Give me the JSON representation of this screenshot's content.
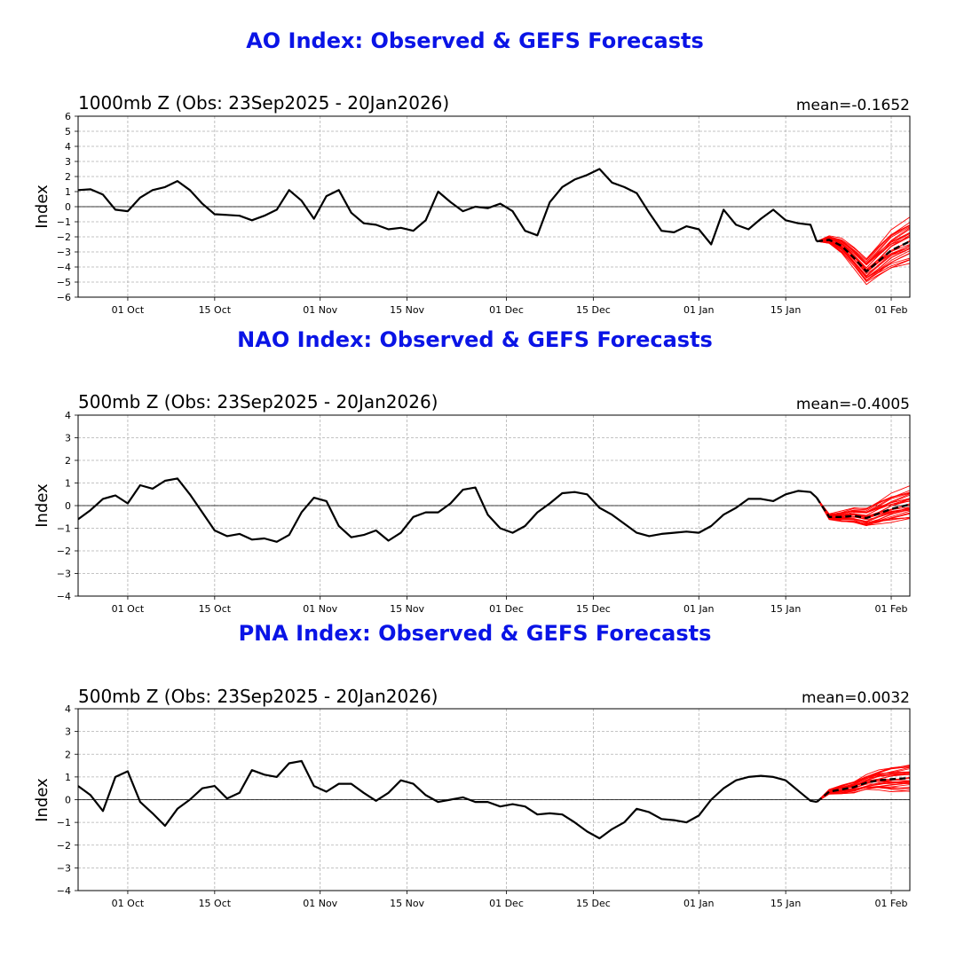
{
  "colors": {
    "title": "#0a14e6",
    "observed": "#000000",
    "members": "#ff0000",
    "ensemble_mean": "#000000",
    "grid": "#b0b0b0",
    "zero_line": "#000000"
  },
  "x_ticks": [
    "01 Oct",
    "15 Oct",
    "01 Nov",
    "15 Nov",
    "01 Dec",
    "15 Dec",
    "01 Jan",
    "15 Jan",
    "01 Feb"
  ],
  "chart_data": [
    {
      "type": "line",
      "title": "AO Index: Observed & GEFS Forecasts",
      "subtitle": "1000mb Z (Obs: 23Sep2025 - 20Jan2026)",
      "mean_label": "mean=-0.1652",
      "ylabel": "Index",
      "ylim": [
        -6,
        6
      ],
      "yticks": [
        -6,
        -5,
        -4,
        -3,
        -2,
        -1,
        0,
        1,
        2,
        3,
        4,
        5,
        6
      ],
      "x_range": [
        "2025-09-23",
        "2026-02-04"
      ],
      "grid": true,
      "observed": {
        "dates": [
          "2025-09-23",
          "2025-09-25",
          "2025-09-27",
          "2025-09-29",
          "2025-10-01",
          "2025-10-03",
          "2025-10-05",
          "2025-10-07",
          "2025-10-09",
          "2025-10-11",
          "2025-10-13",
          "2025-10-15",
          "2025-10-17",
          "2025-10-19",
          "2025-10-21",
          "2025-10-23",
          "2025-10-25",
          "2025-10-27",
          "2025-10-29",
          "2025-10-31",
          "2025-11-02",
          "2025-11-04",
          "2025-11-06",
          "2025-11-08",
          "2025-11-10",
          "2025-11-12",
          "2025-11-14",
          "2025-11-16",
          "2025-11-18",
          "2025-11-20",
          "2025-11-22",
          "2025-11-24",
          "2025-11-26",
          "2025-11-28",
          "2025-11-30",
          "2025-12-02",
          "2025-12-04",
          "2025-12-06",
          "2025-12-08",
          "2025-12-10",
          "2025-12-12",
          "2025-12-14",
          "2025-12-16",
          "2025-12-18",
          "2025-12-20",
          "2025-12-22",
          "2025-12-24",
          "2025-12-26",
          "2025-12-28",
          "2025-12-30",
          "2026-01-01",
          "2026-01-03",
          "2026-01-05",
          "2026-01-07",
          "2026-01-09",
          "2026-01-11",
          "2026-01-13",
          "2026-01-15",
          "2026-01-17",
          "2026-01-19",
          "2026-01-20"
        ],
        "values": [
          1.1,
          1.15,
          0.8,
          -0.2,
          -0.3,
          0.6,
          1.1,
          1.3,
          1.7,
          1.1,
          0.2,
          -0.5,
          -0.55,
          -0.6,
          -0.9,
          -0.6,
          -0.2,
          1.1,
          0.4,
          -0.8,
          0.7,
          1.1,
          -0.4,
          -1.1,
          -1.2,
          -1.5,
          -1.4,
          -1.6,
          -0.9,
          1.0,
          0.3,
          -0.3,
          0,
          -0.1,
          0.2,
          -0.3,
          -1.6,
          -1.9,
          0.3,
          1.3,
          1.8,
          2.1,
          2.5,
          1.6,
          1.3,
          0.9,
          -0.4,
          -1.6,
          -1.7,
          -1.3,
          -1.5,
          -2.5,
          -0.2,
          -1.2,
          -1.5,
          -0.8,
          -0.2,
          -0.9,
          -1.1,
          -1.2,
          -2.3
        ]
      },
      "forecast": {
        "dates": [
          "2026-01-20",
          "2026-01-22",
          "2026-01-24",
          "2026-01-26",
          "2026-01-28",
          "2026-01-30",
          "2026-02-01",
          "2026-02-04"
        ],
        "ensemble_mean": [
          -2.3,
          -2.2,
          -2.6,
          -3.4,
          -4.3,
          -3.6,
          -2.9,
          -2.3
        ],
        "member_spread_offsets": [
          -1.0,
          -0.8,
          -0.6,
          -0.4,
          -0.2,
          0.0,
          0.2,
          0.4,
          0.6,
          0.8,
          1.0,
          1.2,
          -1.2,
          0.3,
          -0.5,
          0.7,
          -0.3,
          1.5,
          -1.4,
          0.1,
          -0.7,
          0.9,
          -0.1,
          1.3,
          -0.9,
          0.5,
          -0.2,
          0.8,
          -0.6,
          1.1,
          -1.1
        ]
      }
    },
    {
      "type": "line",
      "title": "NAO Index: Observed & GEFS Forecasts",
      "subtitle": "500mb Z (Obs: 23Sep2025 - 20Jan2026)",
      "mean_label": "mean=-0.4005",
      "ylabel": "Index",
      "ylim": [
        -4,
        4
      ],
      "yticks": [
        -4,
        -3,
        -2,
        -1,
        0,
        1,
        2,
        3,
        4
      ],
      "x_range": [
        "2025-09-23",
        "2026-02-04"
      ],
      "grid": true,
      "observed": {
        "dates": [
          "2025-09-23",
          "2025-09-25",
          "2025-09-27",
          "2025-09-29",
          "2025-10-01",
          "2025-10-03",
          "2025-10-05",
          "2025-10-07",
          "2025-10-09",
          "2025-10-11",
          "2025-10-13",
          "2025-10-15",
          "2025-10-17",
          "2025-10-19",
          "2025-10-21",
          "2025-10-23",
          "2025-10-25",
          "2025-10-27",
          "2025-10-29",
          "2025-10-31",
          "2025-11-02",
          "2025-11-04",
          "2025-11-06",
          "2025-11-08",
          "2025-11-10",
          "2025-11-12",
          "2025-11-14",
          "2025-11-16",
          "2025-11-18",
          "2025-11-20",
          "2025-11-22",
          "2025-11-24",
          "2025-11-26",
          "2025-11-28",
          "2025-11-30",
          "2025-12-02",
          "2025-12-04",
          "2025-12-06",
          "2025-12-08",
          "2025-12-10",
          "2025-12-12",
          "2025-12-14",
          "2025-12-16",
          "2025-12-18",
          "2025-12-20",
          "2025-12-22",
          "2025-12-24",
          "2025-12-26",
          "2025-12-28",
          "2025-12-30",
          "2026-01-01",
          "2026-01-03",
          "2026-01-05",
          "2026-01-07",
          "2026-01-09",
          "2026-01-11",
          "2026-01-13",
          "2026-01-15",
          "2026-01-17",
          "2026-01-19",
          "2026-01-20"
        ],
        "values": [
          -0.6,
          -0.2,
          0.3,
          0.45,
          0.1,
          0.9,
          0.75,
          1.1,
          1.2,
          0.5,
          -0.3,
          -1.1,
          -1.35,
          -1.25,
          -1.5,
          -1.45,
          -1.6,
          -1.3,
          -0.3,
          0.35,
          0.2,
          -0.9,
          -1.4,
          -1.3,
          -1.1,
          -1.55,
          -1.2,
          -0.5,
          -0.3,
          -0.3,
          0.1,
          0.7,
          0.8,
          -0.4,
          -1.0,
          -1.2,
          -0.9,
          -0.3,
          0.1,
          0.55,
          0.6,
          0.5,
          -0.1,
          -0.4,
          -0.8,
          -1.2,
          -1.35,
          -1.25,
          -1.2,
          -1.15,
          -1.2,
          -0.9,
          -0.4,
          -0.1,
          0.3,
          0.3,
          0.2,
          0.5,
          0.65,
          0.6,
          0.35
        ]
      },
      "forecast": {
        "dates": [
          "2026-01-20",
          "2026-01-22",
          "2026-01-24",
          "2026-01-26",
          "2026-01-28",
          "2026-01-30",
          "2026-02-01",
          "2026-02-04"
        ],
        "ensemble_mean": [
          0.35,
          -0.5,
          -0.5,
          -0.45,
          -0.55,
          -0.35,
          -0.15,
          0.05
        ],
        "member_spread_offsets": [
          -0.5,
          -0.4,
          -0.3,
          -0.2,
          -0.1,
          0.0,
          0.1,
          0.2,
          0.3,
          0.4,
          0.5,
          0.6,
          -0.6,
          0.15,
          -0.25,
          0.35,
          -0.15,
          0.75,
          -0.55,
          0.05,
          -0.35,
          0.45,
          -0.05,
          0.65,
          -0.45,
          0.25,
          -0.1,
          0.4,
          -0.3,
          0.55,
          -0.5
        ]
      }
    },
    {
      "type": "line",
      "title": "PNA Index: Observed & GEFS Forecasts",
      "subtitle": "500mb Z (Obs: 23Sep2025 - 20Jan2026)",
      "mean_label": "mean=0.0032",
      "ylabel": "Index",
      "ylim": [
        -4,
        4
      ],
      "yticks": [
        -4,
        -3,
        -2,
        -1,
        0,
        1,
        2,
        3,
        4
      ],
      "x_range": [
        "2025-09-23",
        "2026-02-04"
      ],
      "grid": true,
      "observed": {
        "dates": [
          "2025-09-23",
          "2025-09-25",
          "2025-09-27",
          "2025-09-29",
          "2025-10-01",
          "2025-10-03",
          "2025-10-05",
          "2025-10-07",
          "2025-10-09",
          "2025-10-11",
          "2025-10-13",
          "2025-10-15",
          "2025-10-17",
          "2025-10-19",
          "2025-10-21",
          "2025-10-23",
          "2025-10-25",
          "2025-10-27",
          "2025-10-29",
          "2025-10-31",
          "2025-11-02",
          "2025-11-04",
          "2025-11-06",
          "2025-11-08",
          "2025-11-10",
          "2025-11-12",
          "2025-11-14",
          "2025-11-16",
          "2025-11-18",
          "2025-11-20",
          "2025-11-22",
          "2025-11-24",
          "2025-11-26",
          "2025-11-28",
          "2025-11-30",
          "2025-12-02",
          "2025-12-04",
          "2025-12-06",
          "2025-12-08",
          "2025-12-10",
          "2025-12-12",
          "2025-12-14",
          "2025-12-16",
          "2025-12-18",
          "2025-12-20",
          "2025-12-22",
          "2025-12-24",
          "2025-12-26",
          "2025-12-28",
          "2025-12-30",
          "2026-01-01",
          "2026-01-03",
          "2026-01-05",
          "2026-01-07",
          "2026-01-09",
          "2026-01-11",
          "2026-01-13",
          "2026-01-15",
          "2026-01-17",
          "2026-01-19",
          "2026-01-20"
        ],
        "values": [
          0.6,
          0.2,
          -0.5,
          1.0,
          1.25,
          -0.1,
          -0.6,
          -1.15,
          -0.4,
          0.0,
          0.5,
          0.6,
          0.05,
          0.3,
          1.3,
          1.1,
          1.0,
          1.6,
          1.7,
          0.6,
          0.35,
          0.7,
          0.7,
          0.3,
          -0.05,
          0.3,
          0.85,
          0.7,
          0.2,
          -0.1,
          0.0,
          0.1,
          -0.1,
          -0.1,
          -0.3,
          -0.2,
          -0.3,
          -0.65,
          -0.6,
          -0.65,
          -1.0,
          -1.4,
          -1.7,
          -1.3,
          -1.0,
          -0.4,
          -0.55,
          -0.85,
          -0.9,
          -1.0,
          -0.7,
          0.0,
          0.5,
          0.85,
          1.0,
          1.05,
          1.0,
          0.85,
          0.4,
          -0.05,
          -0.1
        ]
      },
      "forecast": {
        "dates": [
          "2026-01-20",
          "2026-01-22",
          "2026-01-24",
          "2026-01-26",
          "2026-01-28",
          "2026-01-30",
          "2026-02-01",
          "2026-02-04"
        ],
        "ensemble_mean": [
          -0.1,
          0.35,
          0.45,
          0.55,
          0.75,
          0.85,
          0.9,
          0.95
        ],
        "member_spread_offsets": [
          -0.5,
          -0.4,
          -0.3,
          -0.2,
          -0.1,
          0.0,
          0.1,
          0.2,
          0.3,
          0.4,
          0.5,
          0.55,
          -0.55,
          0.15,
          -0.25,
          0.35,
          -0.15,
          0.5,
          -0.45,
          0.05,
          -0.35,
          0.45,
          -0.05,
          0.25,
          -0.3,
          0.2,
          -0.1,
          0.4,
          -0.2,
          0.3,
          -0.4
        ]
      }
    }
  ]
}
